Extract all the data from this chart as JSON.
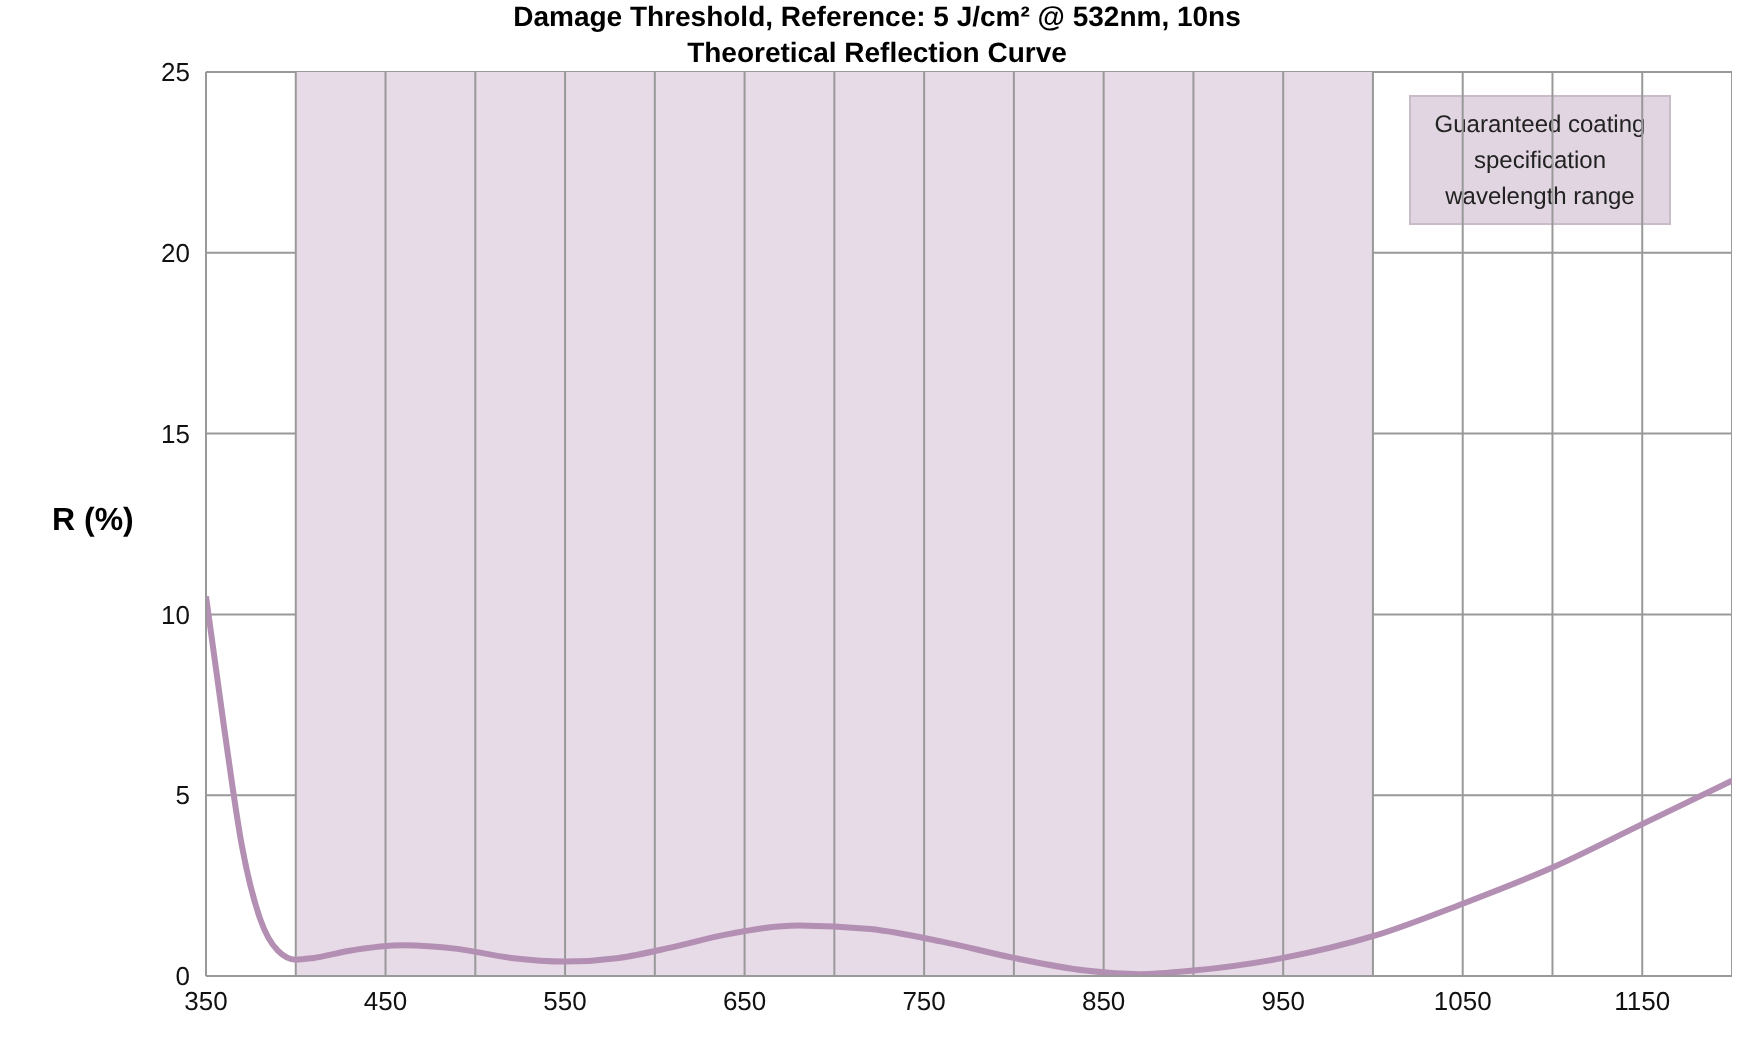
{
  "chart_data": {
    "type": "line",
    "subtitle": "Damage Threshold, Reference: 5 J/cm² @ 532nm, 10ns",
    "title": "Theoretical Reflection Curve",
    "ylabel": "R (%)",
    "x": [
      350,
      360,
      370,
      380,
      390,
      400,
      410,
      430,
      460,
      490,
      520,
      550,
      580,
      610,
      640,
      680,
      720,
      760,
      800,
      840,
      870,
      900,
      950,
      1000,
      1050,
      1100,
      1150,
      1200
    ],
    "series": [
      {
        "color": "#b48fb4",
        "values": [
          10.5,
          6.9,
          3.6,
          1.6,
          0.7,
          0.45,
          0.5,
          0.7,
          0.85,
          0.75,
          0.5,
          0.4,
          0.5,
          0.8,
          1.15,
          1.4,
          1.3,
          0.95,
          0.5,
          0.15,
          0.05,
          0.15,
          0.5,
          1.1,
          2.0,
          3.0,
          4.2,
          5.4
        ]
      }
    ],
    "xlim": [
      350,
      1200
    ],
    "xticks": [
      350,
      {
        "value": 400,
        "label": null
      },
      450,
      {
        "value": 500,
        "label": null
      },
      550,
      {
        "value": 600,
        "label": null
      },
      650,
      {
        "value": 700,
        "label": null
      },
      750,
      {
        "value": 800,
        "label": null
      },
      850,
      {
        "value": 900,
        "label": null
      },
      950,
      {
        "value": 1000,
        "label": null
      },
      1050,
      {
        "value": 1100,
        "label": null
      },
      1150,
      {
        "value": 1200,
        "label": null
      }
    ],
    "ylim": [
      0,
      25
    ],
    "yticks": [
      0,
      5,
      10,
      15,
      20,
      25
    ],
    "bands": [
      {
        "axis": "x",
        "from": 400,
        "to": 1000,
        "label": "Guaranteed coating specification wavelength range",
        "color": "#e6dbe6"
      }
    ],
    "grid": true,
    "legend": false,
    "marker": "none",
    "line_style": "solid"
  }
}
